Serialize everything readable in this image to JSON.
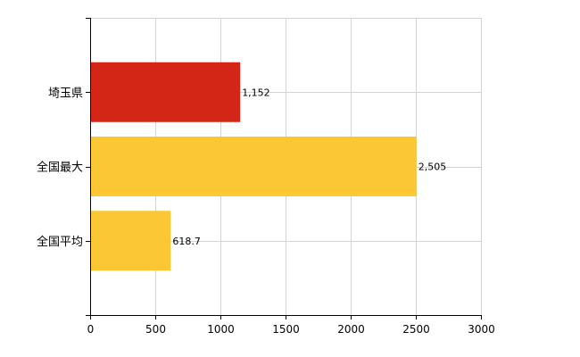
{
  "chart_data": {
    "type": "bar",
    "orientation": "horizontal",
    "categories": [
      "埼玉県",
      "全国最大",
      "全国平均"
    ],
    "values": [
      1152,
      2505,
      618.7
    ],
    "value_labels": [
      "1,152",
      "2,505",
      "618.7"
    ],
    "bar_colors": [
      "#d42617",
      "#fcc734",
      "#fcc734"
    ],
    "xlim": [
      0,
      3000
    ],
    "xticks": [
      0,
      500,
      1000,
      1500,
      2000,
      2500,
      3000
    ],
    "xtick_labels": [
      "0",
      "500",
      "1000",
      "1500",
      "2000",
      "2500",
      "3000"
    ],
    "grid": true,
    "legend": "none",
    "title": "",
    "xlabel": "",
    "ylabel": ""
  }
}
